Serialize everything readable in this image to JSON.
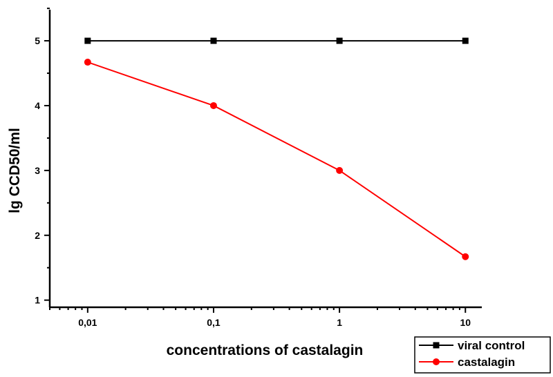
{
  "chart_data": {
    "type": "line",
    "title": "",
    "xlabel": "concentrations of castalagin",
    "ylabel": "lg CCD50/ml",
    "x_scale": "log",
    "categories": [
      "0,01",
      "0,1",
      "1",
      "10"
    ],
    "x": [
      0.01,
      0.1,
      1,
      10
    ],
    "ylim": [
      1,
      5.5
    ],
    "yticks": [
      "1",
      "2",
      "3",
      "4",
      "5"
    ],
    "grid": false,
    "legend_position": "bottom-right",
    "series": [
      {
        "name": "viral control",
        "values": [
          5,
          5,
          5,
          5
        ],
        "color": "#000000",
        "marker": "square"
      },
      {
        "name": "castalagin",
        "values": [
          4.67,
          4.0,
          3.0,
          1.67
        ],
        "color": "#ff0000",
        "marker": "circle"
      }
    ]
  }
}
